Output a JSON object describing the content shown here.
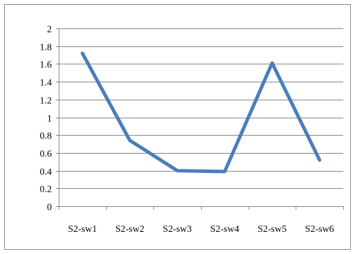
{
  "chart_data": {
    "type": "line",
    "categories": [
      "S2-sw1",
      "S2-sw2",
      "S2-sw3",
      "S2-sw4",
      "S2-sw5",
      "S2-sw6"
    ],
    "series": [
      {
        "values": [
          1.72,
          0.74,
          0.4,
          0.39,
          1.61,
          0.52
        ]
      }
    ],
    "y_ticks": [
      "0",
      "0.2",
      "0.4",
      "0.6",
      "0.8",
      "1",
      "1.2",
      "1.4",
      "1.6",
      "1.8",
      "2"
    ],
    "ylim": [
      0,
      2
    ],
    "grid": true,
    "legend": "none",
    "line_color": "#4a7ebb",
    "grid_color": "#868686",
    "frame_color": "#868686"
  }
}
